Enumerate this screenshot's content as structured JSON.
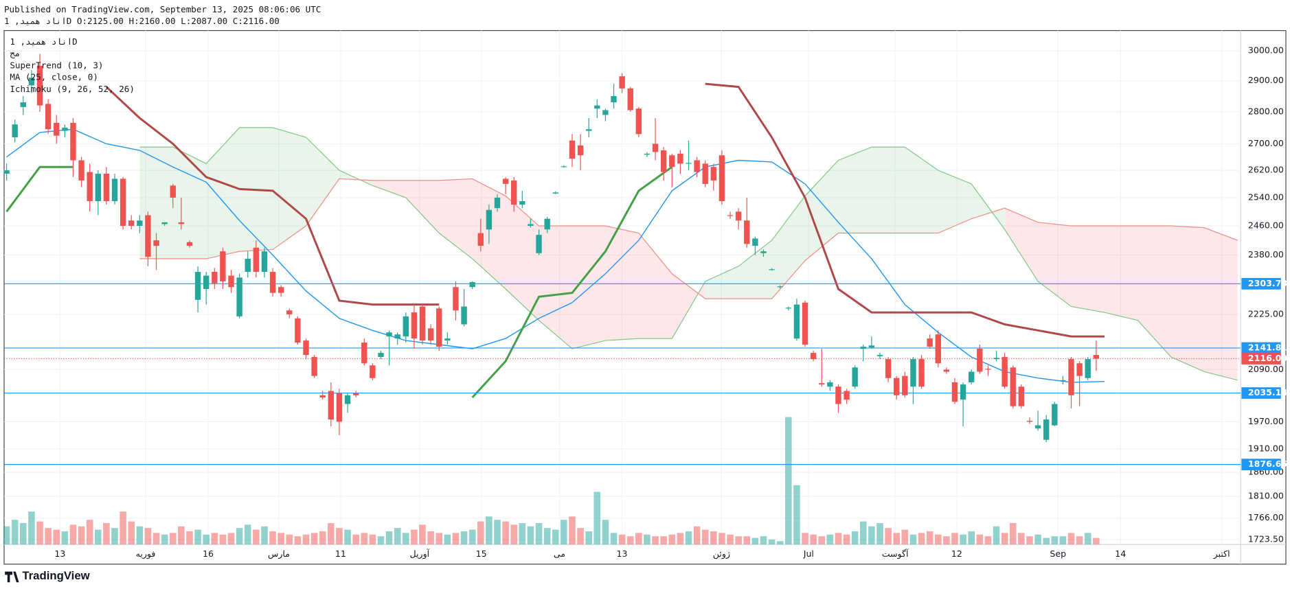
{
  "header": {
    "published": "Published on TradingView.com, September 13, 2025 08:06:06 UTC",
    "symbol_line": "اناد همید, 1D O:2125.00 H:2160.00 L:2087.00 C:2116.00"
  },
  "chart_data": {
    "type": "candlestick",
    "legend": [
      "اناد همید, 1D",
      "مج",
      "SuperTrend (10, 3)",
      "MA (25, close, 0)",
      "Ichimoku (9, 26, 52, 26)"
    ],
    "x_labels": [
      "13",
      "فوریه",
      "16",
      "مارس",
      "11",
      "آوریل",
      "15",
      "می",
      "13",
      "ژوئن",
      "Jul",
      "آگوست",
      "12",
      "Sep",
      "14",
      "اکتبر"
    ],
    "log_scale": true,
    "grid": true,
    "ylim": [
      1714,
      3070
    ],
    "yticks": [
      {
        "value": 3000,
        "label": "3000.00"
      },
      {
        "value": 2900,
        "label": "2900.00"
      },
      {
        "value": 2800,
        "label": "2800.00"
      },
      {
        "value": 2700,
        "label": "2700.00"
      },
      {
        "value": 2620,
        "label": "2620.00"
      },
      {
        "value": 2540,
        "label": "2540.00"
      },
      {
        "value": 2460,
        "label": "2460.00"
      },
      {
        "value": 2380,
        "label": "2380.00"
      },
      {
        "value": 2225,
        "label": "2225.00"
      },
      {
        "value": 2090,
        "label": "2090.00"
      },
      {
        "value": 1970,
        "label": "1970.00"
      },
      {
        "value": 1910,
        "label": "1910.00"
      },
      {
        "value": 1860,
        "label": "1860.00"
      },
      {
        "value": 1810,
        "label": "1810.00"
      },
      {
        "value": 1766,
        "label": "1766.00"
      },
      {
        "value": 1723.5,
        "label": "1723.50"
      }
    ],
    "up_color": "#26a69a",
    "down_color": "#ef5350",
    "open": [
      2610,
      2720,
      2815,
      2885,
      2950,
      2825,
      2765,
      2740,
      2765,
      2650,
      2615,
      2530,
      2610,
      2530,
      2595,
      2475,
      2460,
      2490,
      2420,
      2465,
      2575,
      2470,
      2415,
      2262,
      2290,
      2335,
      2390,
      2325,
      2220,
      2335,
      2400,
      2335,
      2335,
      2295,
      2235,
      2215,
      2160,
      2120,
      2030,
      2040,
      2035,
      2010,
      2035,
      2155,
      2100,
      2120,
      2170,
      2165,
      2170,
      2230,
      2245,
      2190,
      2240,
      2160,
      2295,
      2200,
      2295,
      2440,
      2450,
      2510,
      2595,
      2590,
      2520,
      2460,
      2385,
      2450,
      2552,
      2630,
      2710,
      2695,
      2740,
      2810,
      2790,
      2830,
      2915,
      2875,
      2810,
      2667,
      2700,
      2680,
      2665,
      2670,
      2640,
      2650,
      2640,
      2630,
      2665,
      2490,
      2500,
      2475,
      2405,
      2385,
      2340,
      2295,
      2240,
      2165,
      2255,
      2130,
      2058,
      2050,
      2050,
      2040,
      2050,
      2140,
      2143,
      2122,
      2115,
      2070,
      2075,
      2050,
      2115,
      2165,
      2175,
      2090,
      2060,
      2020,
      2060,
      2140,
      2092,
      2115,
      2120,
      2095,
      2050,
      1972,
      1955,
      1930,
      1962,
      2063,
      2115,
      2105,
      2070,
      2125
    ],
    "high": [
      2640,
      2775,
      2850,
      2935,
      2990,
      2840,
      2790,
      2760,
      2780,
      2660,
      2640,
      2620,
      2630,
      2610,
      2600,
      2490,
      2490,
      2500,
      2440,
      2470,
      2580,
      2540,
      2420,
      2350,
      2335,
      2345,
      2400,
      2340,
      2330,
      2390,
      2420,
      2400,
      2345,
      2300,
      2240,
      2220,
      2165,
      2125,
      2040,
      2060,
      2045,
      2035,
      2040,
      2165,
      2105,
      2135,
      2185,
      2180,
      2230,
      2250,
      2250,
      2200,
      2245,
      2180,
      2310,
      2290,
      2310,
      2480,
      2520,
      2550,
      2600,
      2600,
      2560,
      2480,
      2450,
      2485,
      2558,
      2635,
      2730,
      2730,
      2780,
      2840,
      2810,
      2890,
      2925,
      2880,
      2815,
      2675,
      2780,
      2690,
      2670,
      2680,
      2710,
      2660,
      2650,
      2640,
      2680,
      2500,
      2510,
      2540,
      2430,
      2395,
      2345,
      2300,
      2245,
      2265,
      2260,
      2135,
      2140,
      2065,
      2055,
      2045,
      2100,
      2150,
      2170,
      2130,
      2120,
      2075,
      2085,
      2120,
      2125,
      2175,
      2185,
      2095,
      2070,
      2060,
      2090,
      2150,
      2100,
      2135,
      2130,
      2100,
      2055,
      1980,
      1995,
      1985,
      2015,
      2075,
      2120,
      2110,
      2120,
      2160
    ],
    "low": [
      2590,
      2705,
      2790,
      2860,
      2800,
      2730,
      2700,
      2720,
      2600,
      2570,
      2500,
      2490,
      2520,
      2520,
      2450,
      2450,
      2440,
      2350,
      2340,
      2460,
      2510,
      2450,
      2400,
      2230,
      2250,
      2290,
      2290,
      2280,
      2215,
      2320,
      2320,
      2320,
      2270,
      2270,
      2215,
      2150,
      2115,
      2070,
      2020,
      1960,
      1940,
      1990,
      2025,
      2100,
      2065,
      2115,
      2100,
      2150,
      2155,
      2140,
      2150,
      2150,
      2135,
      2150,
      2210,
      2195,
      2290,
      2390,
      2410,
      2500,
      2550,
      2500,
      2510,
      2455,
      2380,
      2440,
      2550,
      2628,
      2630,
      2620,
      2720,
      2780,
      2770,
      2810,
      2860,
      2800,
      2720,
      2660,
      2650,
      2590,
      2570,
      2610,
      2620,
      2600,
      2570,
      2560,
      2520,
      2480,
      2450,
      2400,
      2380,
      2375,
      2338,
      2292,
      2235,
      2160,
      2145,
      2110,
      2050,
      2040,
      1990,
      2010,
      2045,
      2110,
      2140,
      2115,
      2060,
      2020,
      2025,
      2010,
      2045,
      2140,
      2095,
      2080,
      2010,
      1960,
      2055,
      2080,
      2075,
      2110,
      2045,
      2000,
      2000,
      1965,
      1950,
      1925,
      1960,
      2055,
      2000,
      2005,
      2065,
      2087
    ],
    "close": [
      2620,
      2760,
      2830,
      2910,
      2820,
      2745,
      2725,
      2750,
      2650,
      2590,
      2530,
      2610,
      2530,
      2595,
      2460,
      2460,
      2475,
      2375,
      2405,
      2470,
      2540,
      2465,
      2405,
      2335,
      2325,
      2305,
      2310,
      2295,
      2320,
      2370,
      2335,
      2390,
      2280,
      2280,
      2225,
      2155,
      2125,
      2075,
      2025,
      1975,
      1970,
      2030,
      2030,
      2105,
      2070,
      2130,
      2180,
      2175,
      2220,
      2165,
      2160,
      2160,
      2145,
      2165,
      2235,
      2245,
      2308,
      2405,
      2505,
      2540,
      2580,
      2520,
      2530,
      2465,
      2435,
      2480,
      2555,
      2632,
      2655,
      2665,
      2745,
      2820,
      2805,
      2850,
      2875,
      2805,
      2730,
      2670,
      2675,
      2615,
      2630,
      2640,
      2642,
      2615,
      2580,
      2590,
      2530,
      2488,
      2475,
      2410,
      2425,
      2390,
      2342,
      2297,
      2242,
      2250,
      2150,
      2115,
      2055,
      2060,
      2010,
      2020,
      2095,
      2145,
      2148,
      2125,
      2070,
      2030,
      2030,
      2115,
      2050,
      2145,
      2105,
      2085,
      2015,
      2055,
      2085,
      2085,
      2090,
      2118,
      2050,
      2005,
      2005,
      1970,
      1962,
      1975,
      2010,
      2065,
      2030,
      2075,
      2115,
      2116
    ],
    "volume": [
      22,
      30,
      26,
      40,
      28,
      20,
      18,
      16,
      24,
      22,
      30,
      18,
      26,
      20,
      40,
      28,
      22,
      20,
      14,
      12,
      14,
      22,
      16,
      18,
      12,
      14,
      12,
      14,
      20,
      24,
      18,
      22,
      16,
      14,
      12,
      10,
      12,
      14,
      16,
      26,
      20,
      18,
      12,
      14,
      12,
      10,
      16,
      20,
      14,
      18,
      24,
      16,
      14,
      12,
      14,
      16,
      18,
      28,
      34,
      30,
      28,
      24,
      26,
      22,
      26,
      20,
      18,
      30,
      34,
      20,
      16,
      64,
      30,
      14,
      12,
      10,
      14,
      12,
      10,
      10,
      12,
      14,
      16,
      22,
      18,
      16,
      14,
      12,
      10,
      10,
      8,
      10,
      6,
      4,
      155,
      72,
      14,
      12,
      10,
      12,
      14,
      12,
      16,
      28,
      22,
      26,
      20,
      14,
      18,
      12,
      14,
      16,
      12,
      10,
      14,
      12,
      16,
      12,
      10,
      22,
      14,
      26,
      14,
      10,
      12,
      8,
      10,
      10,
      14,
      10,
      14,
      8
    ],
    "ma": {
      "color": "#2196f3",
      "values": [
        2660,
        2735,
        2745,
        2700,
        2680,
        2630,
        2585,
        2475,
        2380,
        2285,
        2215,
        2185,
        2160,
        2150,
        2140,
        2165,
        2215,
        2255,
        2330,
        2420,
        2560,
        2630,
        2650,
        2645,
        2580,
        2470,
        2370,
        2250,
        2180,
        2120,
        2085,
        2070,
        2060,
        2062
      ]
    },
    "supertrend_up": {
      "color": "#43a047",
      "values": [
        2500,
        2630,
        2630,
        null,
        null,
        null,
        null,
        null,
        null,
        null,
        null,
        null,
        null,
        null,
        2025,
        2110,
        2270,
        2280,
        2390,
        2560,
        2630,
        null,
        null,
        null,
        null,
        null,
        null,
        null,
        null,
        null,
        null,
        null,
        null,
        null
      ]
    },
    "supertrend_down": {
      "color": "#b04848",
      "values": [
        null,
        null,
        null,
        2880,
        2780,
        2700,
        2600,
        2565,
        2560,
        2480,
        2260,
        2250,
        2250,
        2250,
        null,
        null,
        null,
        null,
        null,
        null,
        null,
        2890,
        2880,
        2720,
        2540,
        2290,
        2230,
        2230,
        2230,
        2230,
        2200,
        2185,
        2170,
        2170
      ]
    },
    "ichimoku_span_a": {
      "color": "#81c784",
      "values": [
        null,
        null,
        null,
        null,
        2690,
        2690,
        2640,
        2750,
        2750,
        2720,
        2620,
        2575,
        2540,
        2440,
        2370,
        2290,
        2210,
        2140,
        2160,
        2165,
        2165,
        2310,
        2350,
        2420,
        2545,
        2650,
        2690,
        2690,
        2620,
        2580,
        2450,
        2310,
        2245,
        2230,
        2210,
        2120,
        2085,
        2065
      ]
    },
    "ichimoku_span_b": {
      "color": "#f28b82",
      "values": [
        null,
        null,
        null,
        null,
        2370,
        2370,
        2370,
        2390,
        2395,
        2460,
        2595,
        2590,
        2590,
        2590,
        2595,
        2545,
        2460,
        2460,
        2460,
        2440,
        2330,
        2265,
        2265,
        2265,
        2365,
        2440,
        2440,
        2440,
        2440,
        2480,
        2510,
        2470,
        2460,
        2460,
        2460,
        2460,
        2455,
        2420
      ]
    },
    "price_lines": [
      {
        "value": 2303.73,
        "color": "#2196f3"
      },
      {
        "value": 2141.81,
        "color": "#2196f3"
      },
      {
        "value": 2116,
        "label": "2116.00",
        "color": "#ef5350",
        "dotted": true
      },
      {
        "value": 2035.14,
        "color": "#2196f3"
      },
      {
        "value": 1876.66,
        "color": "#2196f3"
      }
    ]
  },
  "footer": {
    "logo": "TradingView"
  }
}
